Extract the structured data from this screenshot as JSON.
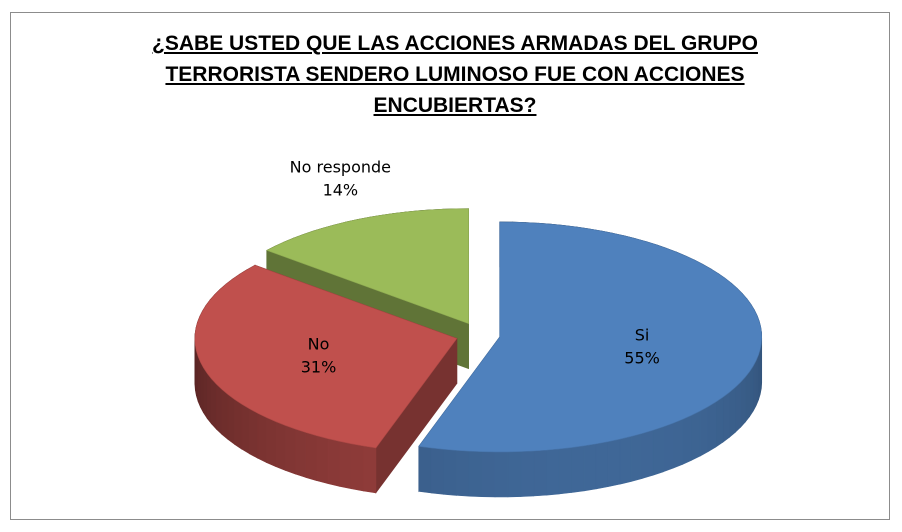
{
  "chart_data": {
    "type": "pie",
    "title": "¿SABE USTED QUE LAS ACCIONES ARMADAS DEL GRUPO TERRORISTA SENDERO LUMINOSO FUE CON ACCIONES ENCUBIERTAS?",
    "categories": [
      "Si",
      "No",
      "No responde"
    ],
    "values": [
      55,
      31,
      14
    ],
    "value_labels": [
      "55%",
      "31%",
      "14%"
    ],
    "colors": [
      "#4f81bd",
      "#c0504d",
      "#9bbb59"
    ],
    "three_d": true,
    "exploded": true
  }
}
